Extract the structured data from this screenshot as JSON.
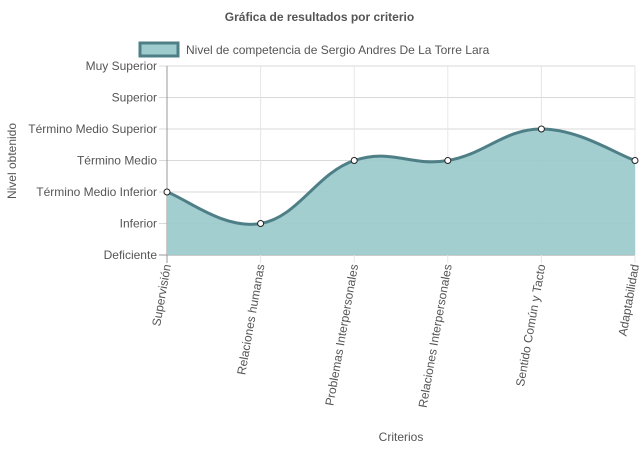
{
  "chart_data": {
    "type": "area",
    "title": "Gráfica de resultados por criterio",
    "xlabel": "Criterios",
    "ylabel": "Nivel obtenido",
    "categories": [
      "Supervisión",
      "Relaciones humanas",
      "Problemas Interpersonales",
      "Relaciones Interpersonales",
      "Sentido Común y Tacto",
      "Adaptabilidad"
    ],
    "y_levels": [
      "Deficiente",
      "Inferior",
      "Término Medio Inferior",
      "Término Medio",
      "Término Medio Superior",
      "Superior",
      "Muy Superior"
    ],
    "ylim": [
      0,
      6
    ],
    "series": [
      {
        "name": "Nivel de competencia de Sergio Andres De La Torre Lara",
        "values": [
          2,
          1,
          3,
          3,
          4,
          3
        ]
      }
    ],
    "grid": true,
    "legend": "top",
    "colors": {
      "fill": "#9ecbce",
      "line": "#4f7f86",
      "grid": "#d9d9d9",
      "axis": "#999999",
      "text": "#555555"
    }
  }
}
